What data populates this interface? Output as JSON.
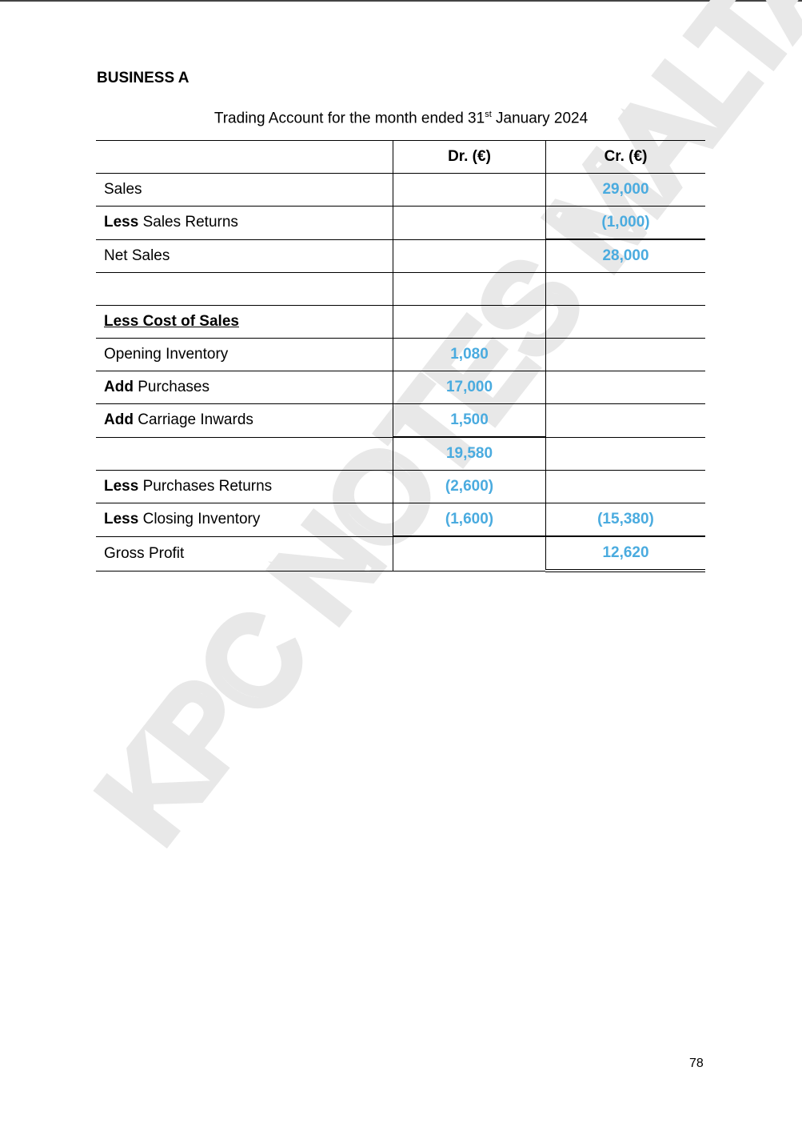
{
  "heading": "BUSINESS A",
  "title": {
    "pre": "Trading Account for the month ended 31",
    "sup": "st",
    "post": " January 2024"
  },
  "watermark": "KPC NOTES MALTA",
  "table": {
    "headers": [
      "",
      "Dr. (€)",
      "Cr. (€)"
    ],
    "rows": [
      {
        "prefix": "",
        "label": "Sales",
        "dr": "",
        "cr": "29,000"
      },
      {
        "prefix": "Less",
        "label": " Sales Returns",
        "dr": "",
        "cr": "(1,000)"
      },
      {
        "prefix": "",
        "label": "Net Sales",
        "dr": "",
        "cr": "28,000"
      },
      {
        "prefix": "",
        "label": "",
        "dr": "",
        "cr": ""
      },
      {
        "prefix": "",
        "label": "Less Cost of Sales",
        "dr": "",
        "cr": ""
      },
      {
        "prefix": "",
        "label": "Opening Inventory",
        "dr": "1,080",
        "cr": ""
      },
      {
        "prefix": "Add",
        "label": " Purchases",
        "dr": "17,000",
        "cr": ""
      },
      {
        "prefix": "Add",
        "label": " Carriage Inwards",
        "dr": "1,500",
        "cr": ""
      },
      {
        "prefix": "",
        "label": "",
        "dr": "19,580",
        "cr": ""
      },
      {
        "prefix": "Less",
        "label": " Purchases Returns",
        "dr": "(2,600)",
        "cr": ""
      },
      {
        "prefix": "Less",
        "label": " Closing Inventory",
        "dr": "(1,600)",
        "cr": "(15,380)"
      },
      {
        "prefix": "",
        "label": "Gross Profit",
        "dr": "",
        "cr": "12,620"
      }
    ]
  },
  "page_number": "78",
  "colors": {
    "value": "#4aabdf",
    "watermark": "#ececec"
  }
}
